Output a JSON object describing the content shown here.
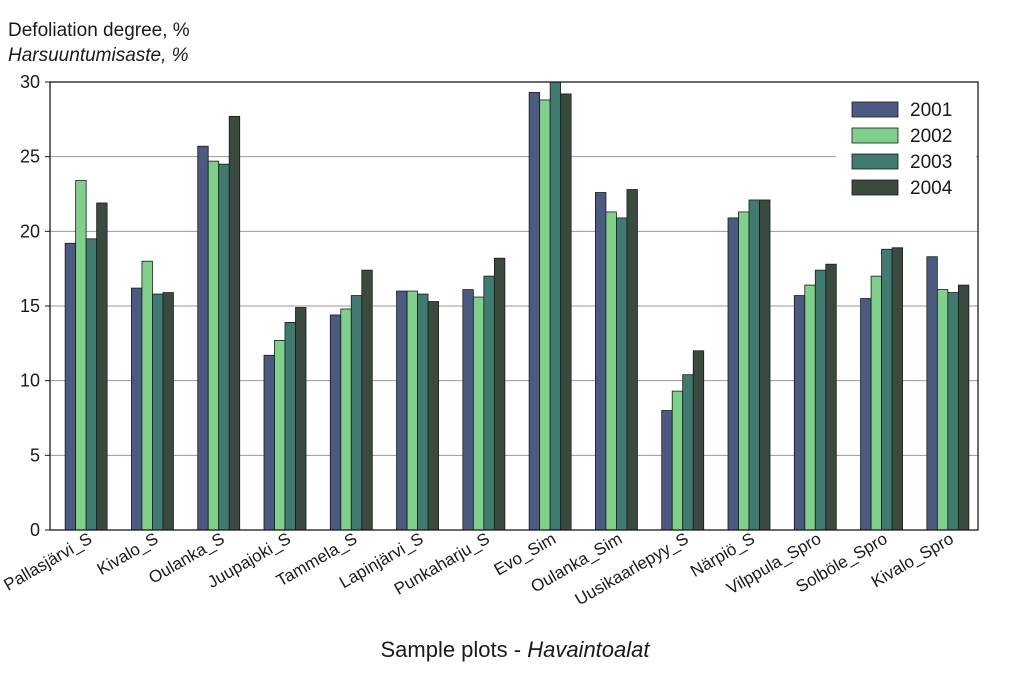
{
  "chart_data": {
    "type": "bar",
    "ylabel_line1": "Defoliation degree, %",
    "ylabel_line2": "Harsuuntumisaste, %",
    "xlabel_main": "Sample plots - ",
    "xlabel_italic": "Havaintoalat",
    "ylim": [
      0,
      30
    ],
    "yticks": [
      0,
      5,
      10,
      15,
      20,
      25,
      30
    ],
    "grid": true,
    "legend_position": "top-right",
    "categories": [
      "Pallasjärvi_S",
      "Kivalo_S",
      "Oulanka_S",
      "Juupajoki_S",
      "Tammela_S",
      "Lapinjärvi_S",
      "Punkaharju_S",
      "Evo_Sim",
      "Oulanka_Sim",
      "Uusikaarlepyy_S",
      "Närpiö_S",
      "Vilppula_Spro",
      "Solböle_Spro",
      "Kivalo_Spro"
    ],
    "series": [
      {
        "name": "2001",
        "color": "#4a5a80",
        "values": [
          19.2,
          16.2,
          25.7,
          11.7,
          14.4,
          16.0,
          16.1,
          29.3,
          22.6,
          8.0,
          20.9,
          15.7,
          15.5,
          18.3
        ]
      },
      {
        "name": "2002",
        "color": "#7fd08a",
        "values": [
          23.4,
          18.0,
          24.7,
          12.7,
          14.8,
          16.0,
          15.6,
          28.8,
          21.3,
          9.3,
          21.3,
          16.4,
          17.0,
          16.1
        ]
      },
      {
        "name": "2003",
        "color": "#3f7b70",
        "values": [
          19.5,
          15.8,
          24.5,
          13.9,
          15.7,
          15.8,
          17.0,
          30.0,
          20.9,
          10.4,
          22.1,
          17.4,
          18.8,
          15.9
        ]
      },
      {
        "name": "2004",
        "color": "#3a4a3e",
        "values": [
          21.9,
          15.9,
          27.7,
          14.9,
          17.4,
          15.3,
          18.2,
          29.2,
          22.8,
          12.0,
          22.1,
          17.8,
          18.9,
          16.4
        ]
      }
    ]
  }
}
